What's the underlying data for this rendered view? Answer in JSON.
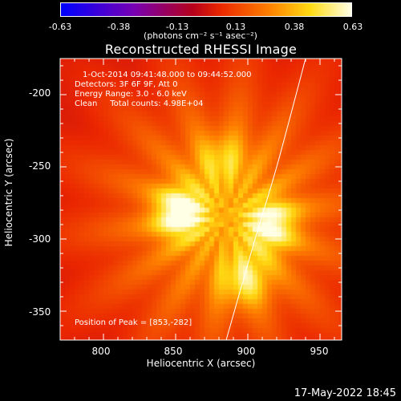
{
  "colorbar": {
    "ticks": [
      "-0.63",
      "-0.38",
      "-0.13",
      "0.13",
      "0.38",
      "0.63"
    ],
    "values": [
      -0.63,
      -0.38,
      -0.13,
      0.13,
      0.38,
      0.63
    ],
    "units": "(photons cm⁻² s⁻¹ asec⁻²)"
  },
  "chart_data": {
    "type": "heatmap",
    "title": "Reconstructed RHESSI Image",
    "xlabel": "Heliocentric X (arcsec)",
    "ylabel": "Heliocentric Y (arcsec)",
    "xlim": [
      770,
      965
    ],
    "ylim": [
      -370,
      -175
    ],
    "xticks": [
      800,
      850,
      900,
      950
    ],
    "yticks": [
      -200,
      -250,
      -300,
      -350
    ],
    "zlim": [
      -0.63,
      0.63
    ],
    "sources": [
      {
        "x": 853,
        "y": -282,
        "value": 0.63
      },
      {
        "x": 916,
        "y": -290,
        "value": 0.55
      },
      {
        "x": 898,
        "y": -328,
        "value": 0.45
      },
      {
        "x": 882,
        "y": -245,
        "value": 0.35
      }
    ],
    "limb_curve": [
      {
        "x": 940,
        "y": -175
      },
      {
        "x": 920,
        "y": -250
      },
      {
        "x": 905,
        "y": -300
      },
      {
        "x": 885,
        "y": -370
      }
    ],
    "info_lines": [
      "1-Oct-2014 09:41:48.000 to 09:44:52.000",
      "Detectors: 3F 6F 9F, Att 0",
      "Energy Range: 3.0 - 6.0 keV",
      "Clean     Total counts: 4.98E+04"
    ],
    "peak_label": "Position of Peak = [853,-282]"
  },
  "footer": {
    "date": "17-May-2022 18:45"
  }
}
